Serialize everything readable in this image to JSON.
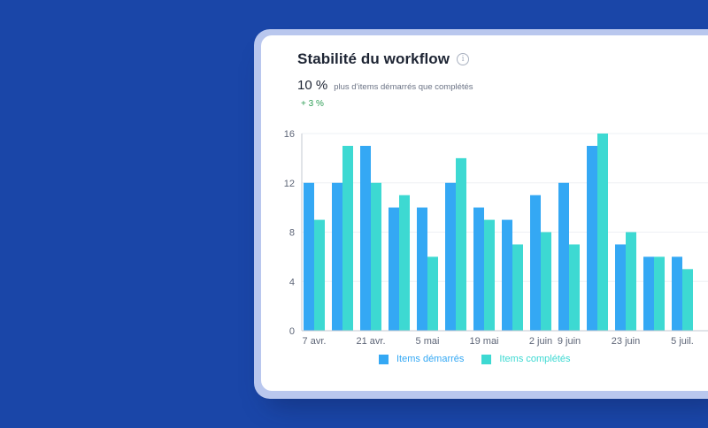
{
  "widget": {
    "title": "Stabilité du workflow",
    "kpi_value": "10 %",
    "kpi_label": "plus d’items démarrés que complétés",
    "kpi_delta": "+ 3 %",
    "delta_color": "#2f9e56"
  },
  "colors": {
    "started": "#34a8f4",
    "completed": "#3dd9d2"
  },
  "icons": {
    "info": "info-icon"
  },
  "chart_data": {
    "type": "bar",
    "categories": [
      "7 avr.",
      "",
      "21 avr.",
      "",
      "5 mai",
      "",
      "19 mai",
      "",
      "2 juin",
      "9 juin",
      "",
      "23 juin",
      "",
      "5 juil."
    ],
    "series": [
      {
        "name": "Items démarrés",
        "values": [
          12,
          12,
          15,
          10,
          10,
          12,
          10,
          9,
          11,
          12,
          15,
          7,
          6,
          6
        ]
      },
      {
        "name": "Items complétés",
        "values": [
          9,
          15,
          12,
          11,
          6,
          14,
          9,
          7,
          8,
          7,
          16,
          8,
          6,
          5
        ]
      }
    ],
    "y_ticks": [
      0,
      4,
      8,
      12,
      16
    ],
    "ylim": [
      0,
      16
    ],
    "grid": true,
    "legend_position": "bottom-center"
  }
}
